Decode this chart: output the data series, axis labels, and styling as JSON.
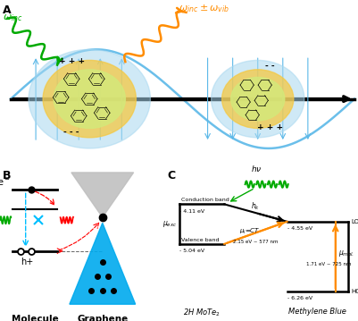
{
  "panel_A_label": "A",
  "panel_B_label": "B",
  "panel_C_label": "C",
  "omega_inc": "$\\omega_{inc}$",
  "omega_scattered": "$\\omega_{inc} \\pm \\omega_{vib}$",
  "CB_label": "Conduction band",
  "VB_label": "Valence band",
  "CB_energy_label": "- 4.11 eV",
  "VB_energy_label": "- 5.04 eV",
  "LUMO_energy_label": "- 4.55 eV",
  "HOMO_energy_label": "- 6.26 eV",
  "CT_label": "2.15 eV ~ 577 nm",
  "mol_label": "1.71 eV ~ 725 nm",
  "MoTe2_label": "2H MoTe$_2$",
  "MB_label": "Methylene Blue",
  "LOMO_label": "LOMO",
  "HOMO_label": "HOMO",
  "molecule_label": "Molecule",
  "graphene_label": "Graphene",
  "hv_label": "$h\\nu$",
  "hk_label": "$h_k$",
  "mu_exc_label": "$\\mu_{exc}$",
  "mu_CT_label": "$\\mu_i$=CT",
  "mu_mol_label": "$\\mu_{mol.}$",
  "eminus_label": "e$^-$",
  "hplus_label": "h+"
}
